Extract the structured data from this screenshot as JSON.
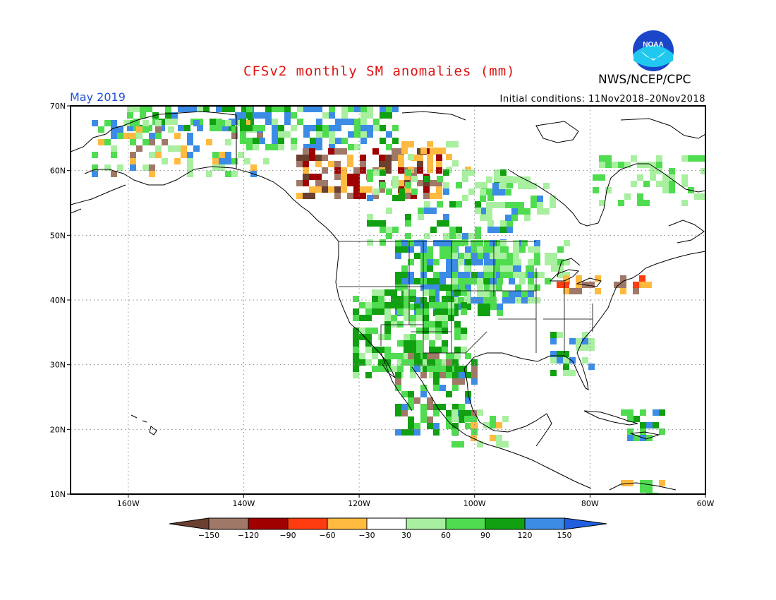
{
  "header": {
    "title": "CFSv2 monthly SM anomalies (mm)",
    "agency": "NWS/NCEP/CPC",
    "period": "May 2019",
    "initial_conditions": "Initial conditions: 11Nov2018–20Nov2018",
    "logo_text": "NOAA"
  },
  "colors": {
    "title": "#e01010",
    "period": "#2050d0",
    "land_line": "#000000",
    "grid": "#888888"
  },
  "map": {
    "lat_ticks": [
      "70N",
      "60N",
      "50N",
      "40N",
      "30N",
      "20N",
      "10N"
    ],
    "lon_ticks": [
      "160W",
      "140W",
      "120W",
      "100W",
      "80W",
      "60W"
    ]
  },
  "colorbar": {
    "bins": [
      {
        "color": "#6b4030"
      },
      {
        "color": "#a07868"
      },
      {
        "color": "#a00000"
      },
      {
        "color": "#ff3c10"
      },
      {
        "color": "#ffba40"
      },
      {
        "color": "#ffffff"
      },
      {
        "color": "#a8f0a0"
      },
      {
        "color": "#50dc50"
      },
      {
        "color": "#10a010"
      },
      {
        "color": "#3c8ce6"
      },
      {
        "color": "#2060e0"
      }
    ],
    "labels": [
      "−150",
      "−120",
      "−90",
      "−60",
      "−30",
      "30",
      "60",
      "90",
      "120",
      "150"
    ]
  }
}
